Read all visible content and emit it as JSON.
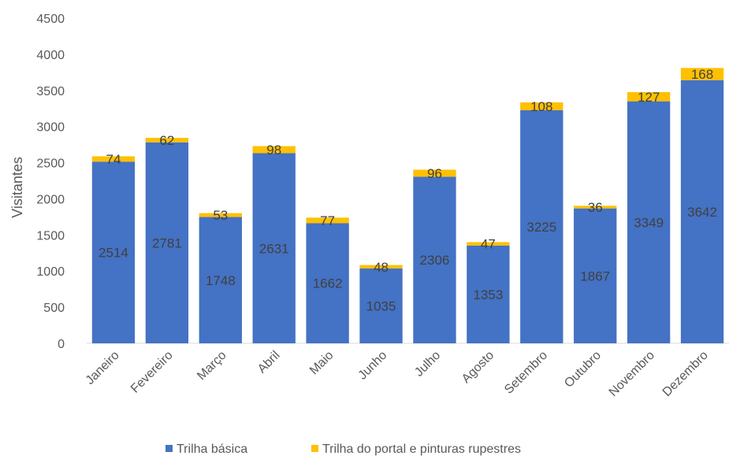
{
  "chart_data": {
    "type": "bar",
    "stacked": true,
    "title": "",
    "xlabel": "",
    "ylabel": "Visitantes",
    "ylim": [
      0,
      4500
    ],
    "yticks": [
      0,
      500,
      1000,
      1500,
      2000,
      2500,
      3000,
      3500,
      4000,
      4500
    ],
    "grid": false,
    "legend_position": "bottom",
    "categories": [
      "Janeiro",
      "Fevereiro",
      "Março",
      "Abril",
      "Maio",
      "Junho",
      "Julho",
      "Agosto",
      "Setembro",
      "Outubro",
      "Novembro",
      "Dezembro"
    ],
    "series": [
      {
        "name": "Trilha básica",
        "color": "#4472C4",
        "values": [
          2514,
          2781,
          1748,
          2631,
          1662,
          1035,
          2306,
          1353,
          3225,
          1867,
          3349,
          3642
        ]
      },
      {
        "name": "Trilha do portal e pinturas rupestres",
        "color": "#FFC000",
        "values": [
          74,
          62,
          53,
          98,
          77,
          48,
          96,
          47,
          108,
          36,
          127,
          168
        ]
      }
    ]
  }
}
